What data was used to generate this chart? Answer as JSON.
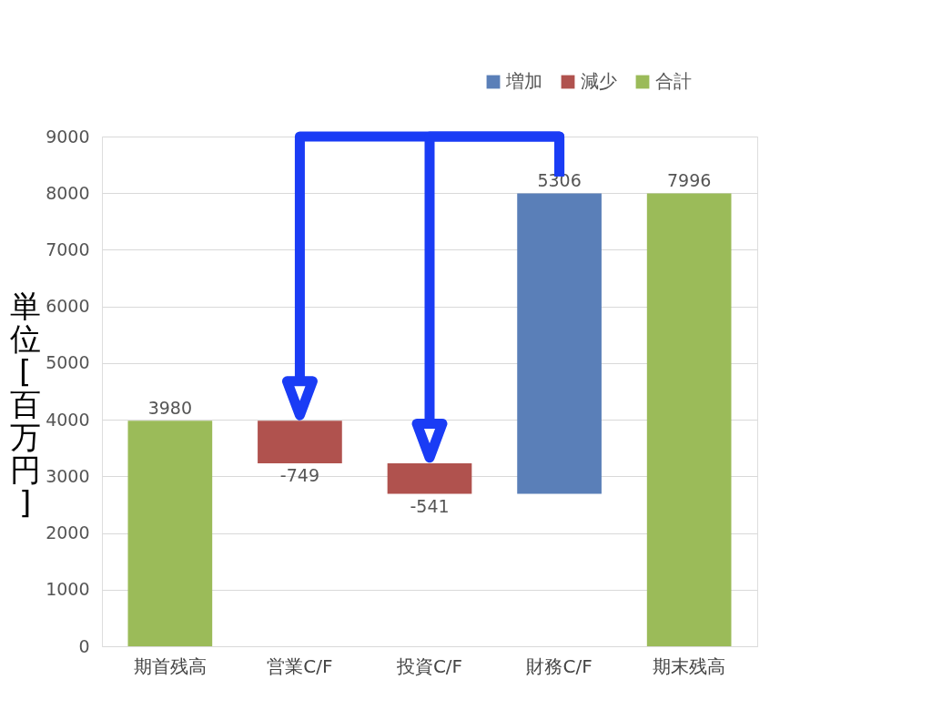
{
  "chart_data": {
    "type": "bar",
    "categories": [
      "期首残高",
      "営業C/F",
      "投資C/F",
      "財務C/F",
      "期末残高"
    ],
    "series": [
      {
        "name": "増加",
        "color": "#5a7fb8",
        "values": [
          null,
          null,
          null,
          5306,
          null
        ],
        "base": [
          null,
          null,
          null,
          2690,
          null
        ]
      },
      {
        "name": "減少",
        "color": "#b0524e",
        "values": [
          null,
          -749,
          -541,
          null,
          null
        ],
        "base": [
          null,
          3980,
          3231,
          null,
          null
        ]
      },
      {
        "name": "合計",
        "color": "#9bbb59",
        "values": [
          3980,
          null,
          null,
          null,
          7996
        ],
        "base": [
          0,
          null,
          null,
          null,
          0
        ]
      }
    ],
    "data_labels": true,
    "ylabel": "単位 [百万円]",
    "ylim": [
      0,
      9000
    ],
    "yticks": [
      0,
      1000,
      2000,
      3000,
      4000,
      5000,
      6000,
      7000,
      8000,
      9000
    ],
    "grid": "y",
    "legend": "top right"
  }
}
